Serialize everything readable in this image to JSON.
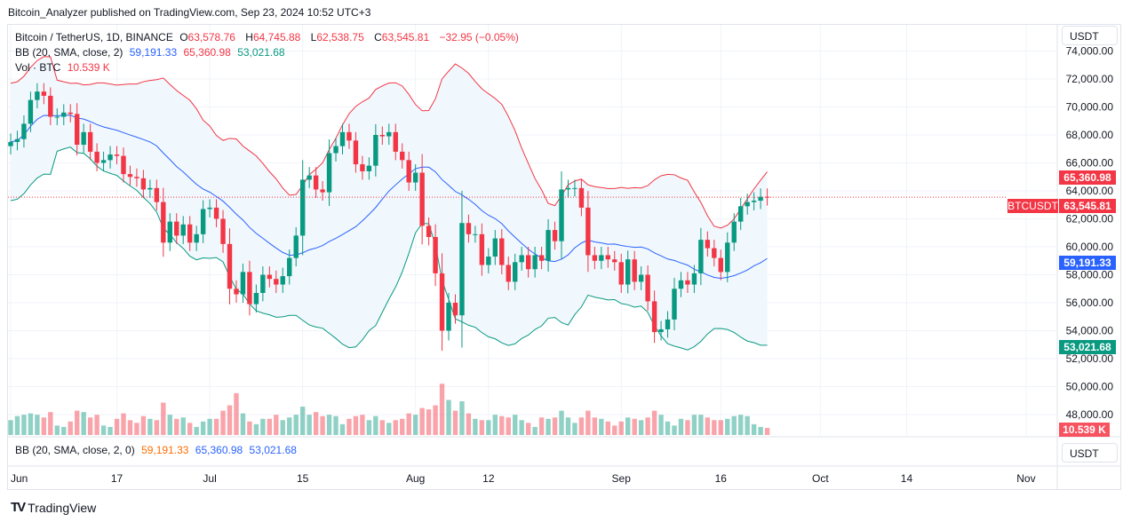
{
  "header": {
    "published": "Bitcoin_Analyzer published on TradingView.com, Sep 23, 2024 10:52 UTC+3"
  },
  "legend": {
    "symbol": "Bitcoin / TetherUS, 1D, BINANCE",
    "o_label": "O",
    "o": "63,578.76",
    "h_label": "H",
    "h": "64,745.88",
    "l_label": "L",
    "l": "62,538.75",
    "c_label": "C",
    "c": "63,545.81",
    "change": "−32.95 (−0.05%)",
    "bb_label": "BB (20, SMA, close, 2)",
    "bb_basis": "59,191.33",
    "bb_upper": "65,360.98",
    "bb_lower": "53,021.68",
    "vol_label": "Vol · BTC",
    "vol": "10.539 K"
  },
  "pane2": {
    "label": "BB (20, SMA, close, 2, 0)",
    "basis": "59,191.33",
    "upper": "65,360.98",
    "lower": "53,021.68",
    "currency": "USDT"
  },
  "axis": {
    "currency": "USDT",
    "symbol_tag": "BTCUSDT",
    "price_tag": "63,545.81",
    "upper_tag": "65,360.98",
    "basis_tag": "59,191.33",
    "lower_tag": "53,021.68",
    "vol_tag": "10.539 K"
  },
  "footer": {
    "brand": "TradingView"
  },
  "colors": {
    "up": "#089981",
    "down": "#f23645",
    "bb_upper": "#f23645",
    "bb_basis": "#2962ff",
    "bb_lower": "#089981",
    "fill": "#f0f7fd"
  },
  "chart_data": {
    "type": "candlestick",
    "interval": "1D",
    "start_date": "2024-06-01",
    "ylim": [
      47000,
      74500
    ],
    "y_ticks": [
      "74,000.00",
      "72,000.00",
      "70,000.00",
      "68,000.00",
      "66,000.00",
      "64,000.00",
      "62,000.00",
      "60,000.00",
      "58,000.00",
      "56,000.00",
      "54,000.00",
      "52,000.00",
      "50,000.00",
      "48,000.00"
    ],
    "x_ticks": [
      {
        "label": "Jun",
        "date": "2024-06-01"
      },
      {
        "label": "17",
        "date": "2024-06-17"
      },
      {
        "label": "Jul",
        "date": "2024-07-01"
      },
      {
        "label": "15",
        "date": "2024-07-15"
      },
      {
        "label": "Aug",
        "date": "2024-08-01"
      },
      {
        "label": "12",
        "date": "2024-08-12"
      },
      {
        "label": "Sep",
        "date": "2024-09-01"
      },
      {
        "label": "16",
        "date": "2024-09-16"
      },
      {
        "label": "Oct",
        "date": "2024-10-01"
      },
      {
        "label": "14",
        "date": "2024-10-14"
      },
      {
        "label": "Nov",
        "date": "2024-11-01"
      }
    ],
    "close": [
      67500,
      67700,
      68800,
      70500,
      71100,
      70800,
      69300,
      69300,
      69600,
      69500,
      67300,
      68200,
      66800,
      66000,
      66200,
      66600,
      66500,
      65200,
      65000,
      64900,
      64100,
      64200,
      63200,
      60300,
      61800,
      60800,
      61600,
      60300,
      60900,
      62700,
      62800,
      62000,
      60200,
      57000,
      56600,
      58200,
      55900,
      56700,
      58000,
      57700,
      57300,
      57900,
      59200,
      60800,
      64800,
      65100,
      64100,
      63900,
      66700,
      67200,
      68200,
      67600,
      65900,
      65400,
      65800,
      68000,
      67900,
      68200,
      66800,
      66200,
      64600,
      65300,
      61500,
      60700,
      58100,
      54000,
      56000,
      55100,
      61700,
      60900,
      60900,
      58700,
      59300,
      60600,
      58700,
      57500,
      58900,
      59400,
      58400,
      59400,
      59000,
      61200,
      60400,
      64100,
      64200,
      64200,
      62800,
      59400,
      59000,
      59400,
      59100,
      58900,
      57300,
      59100,
      57500,
      58000,
      56100,
      53900,
      54100,
      54800,
      57000,
      57600,
      57300,
      58100,
      60500,
      59900,
      59200,
      58200,
      60300,
      61800,
      62900,
      63200,
      63300,
      63578.76,
      63545.81
    ],
    "volume_k": [
      22,
      28,
      30,
      32,
      30,
      26,
      34,
      14,
      12,
      20,
      36,
      34,
      26,
      30,
      14,
      12,
      24,
      32,
      22,
      18,
      28,
      24,
      22,
      48,
      30,
      24,
      26,
      18,
      12,
      20,
      24,
      24,
      36,
      44,
      62,
      32,
      20,
      16,
      24,
      24,
      30,
      22,
      26,
      30,
      42,
      30,
      34,
      28,
      30,
      28,
      16,
      24,
      28,
      30,
      22,
      28,
      22,
      18,
      22,
      24,
      32,
      30,
      40,
      38,
      44,
      76,
      52,
      36,
      50,
      32,
      24,
      22,
      22,
      30,
      28,
      26,
      30,
      22,
      18,
      12,
      26,
      24,
      26,
      36,
      26,
      18,
      26,
      36,
      26,
      24,
      20,
      14,
      20,
      26,
      24,
      22,
      26,
      36,
      30,
      20,
      14,
      24,
      22,
      30,
      30,
      26,
      22,
      22,
      24,
      28,
      30,
      28,
      16,
      12,
      10.539
    ],
    "bollinger": {
      "period": 20,
      "stddev": 2,
      "basis": 59191.33,
      "upper": 65360.98,
      "lower": 53021.68
    },
    "last_price": 63545.81
  }
}
